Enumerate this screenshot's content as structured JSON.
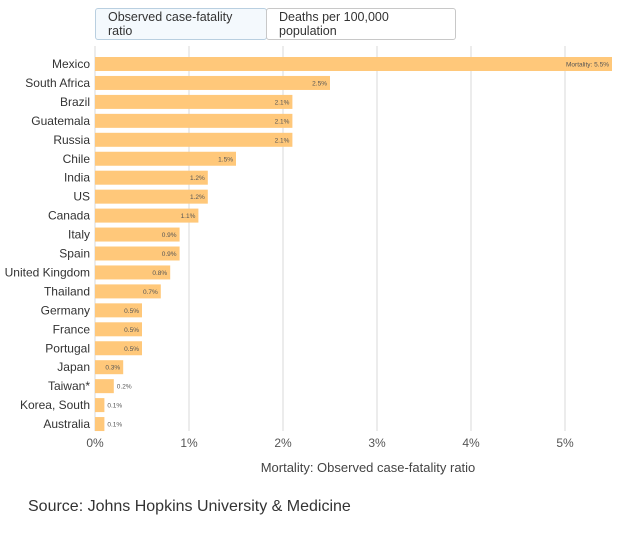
{
  "tabs": [
    {
      "label": "Observed case-fatality ratio",
      "active": true
    },
    {
      "label": "Deaths per 100,000 population",
      "active": false
    }
  ],
  "colors": {
    "bar": "#ffc87a",
    "grid": "#d9d9d9",
    "text": "#333333",
    "label": "#555555",
    "tab_active_bg": "#f4f9fd"
  },
  "chart_data": {
    "type": "bar",
    "orientation": "horizontal",
    "categories": [
      "Mexico",
      "South Africa",
      "Brazil",
      "Guatemala",
      "Russia",
      "Chile",
      "India",
      "US",
      "Canada",
      "Italy",
      "Spain",
      "United Kingdom",
      "Thailand",
      "Germany",
      "France",
      "Portugal",
      "Japan",
      "Taiwan*",
      "Korea, South",
      "Australia"
    ],
    "values": [
      5.5,
      2.5,
      2.1,
      2.1,
      2.1,
      1.5,
      1.2,
      1.2,
      1.1,
      0.9,
      0.9,
      0.8,
      0.7,
      0.5,
      0.5,
      0.5,
      0.3,
      0.2,
      0.1,
      0.1
    ],
    "data_labels": [
      "Mortality: 5.5%",
      "2.5%",
      "2.1%",
      "2.1%",
      "2.1%",
      "1.5%",
      "1.2%",
      "1.2%",
      "1.1%",
      "0.9%",
      "0.9%",
      "0.8%",
      "0.7%",
      "0.5%",
      "0.5%",
      "0.5%",
      "0.3%",
      "0.2%",
      "0.1%",
      "0.1%"
    ],
    "xlim": [
      0,
      5.5
    ],
    "xticks": [
      0,
      1,
      2,
      3,
      4,
      5
    ],
    "xtick_labels": [
      "0%",
      "1%",
      "2%",
      "3%",
      "4%",
      "5%"
    ],
    "xlabel": "Mortality: Observed case-fatality ratio",
    "grid": true
  },
  "source": "Source: Johns Hopkins University & Medicine"
}
